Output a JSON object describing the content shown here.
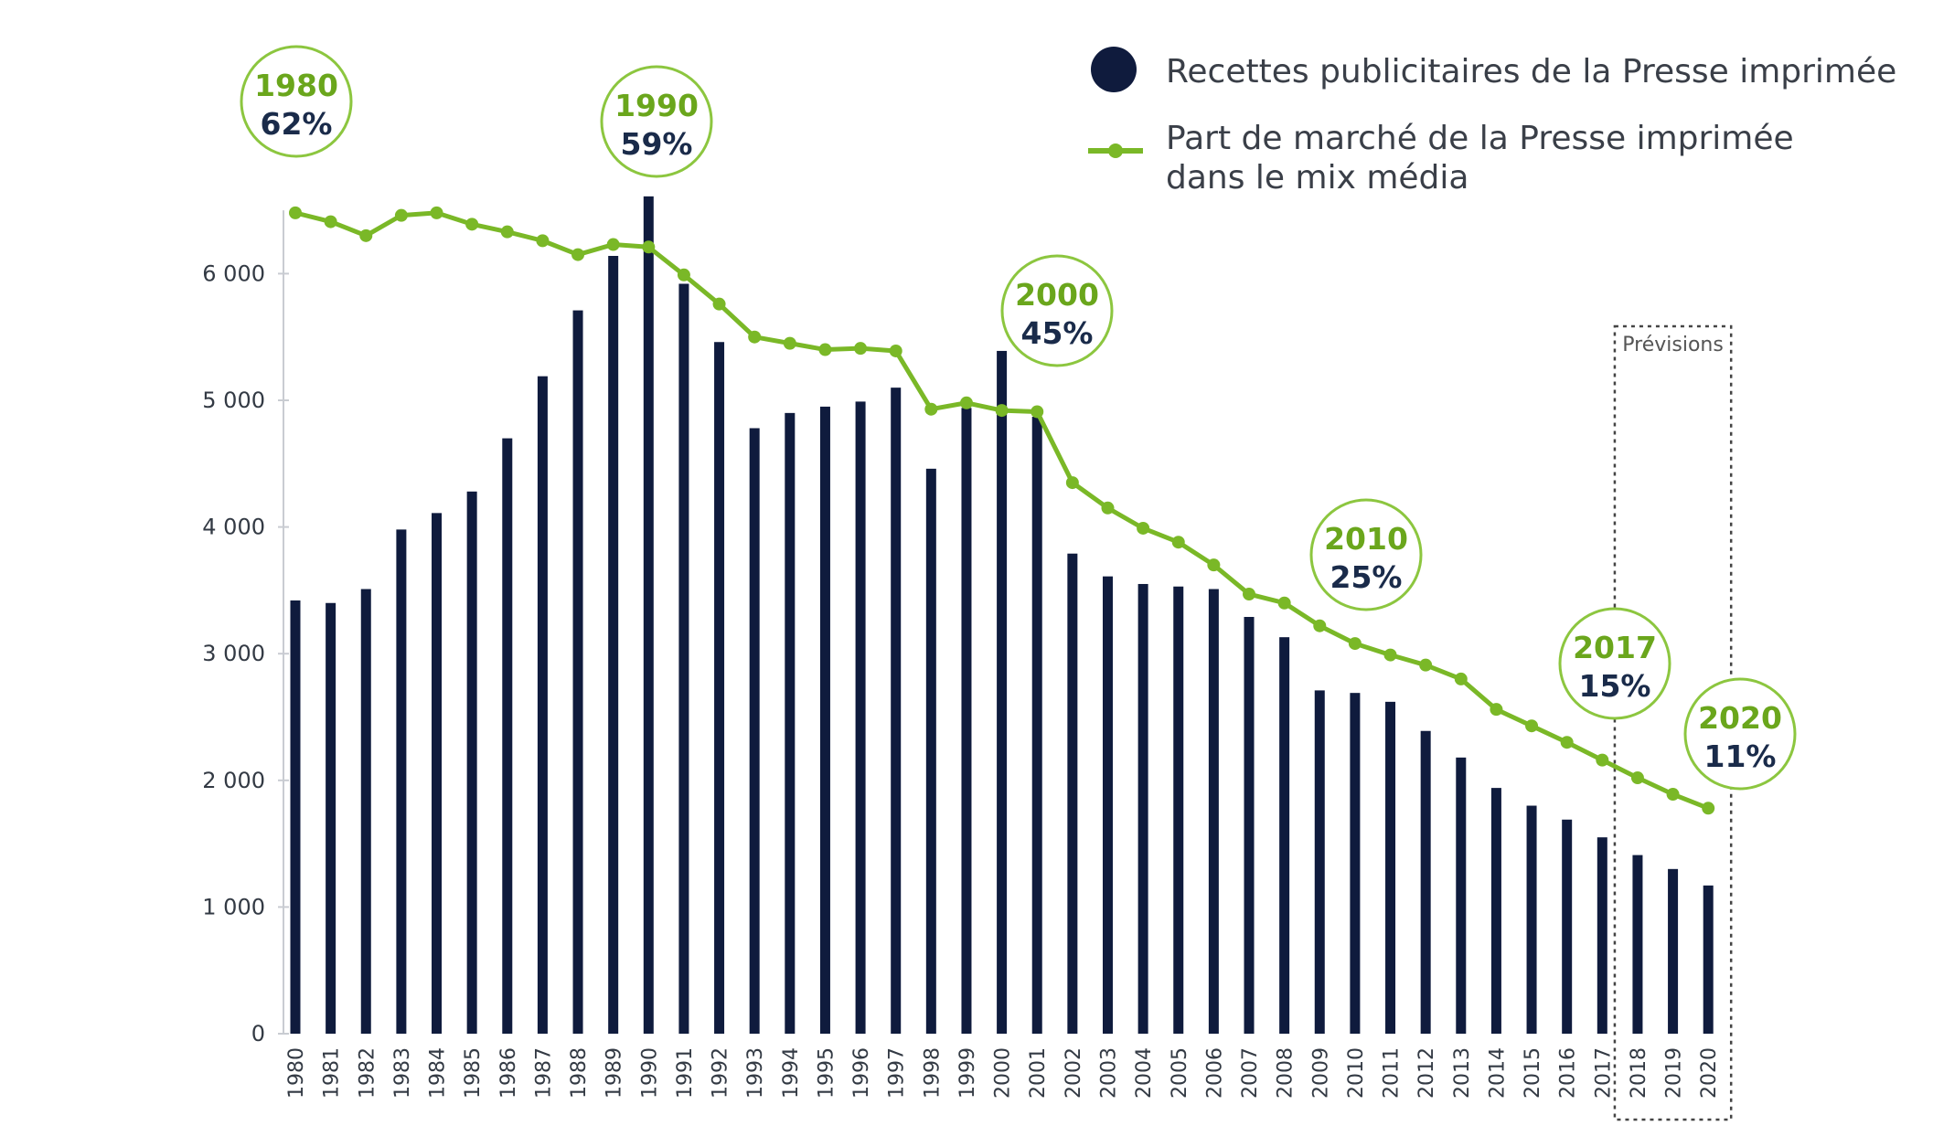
{
  "chart_data": {
    "type": "bar",
    "categories": [
      "1980",
      "1981",
      "1982",
      "1983",
      "1984",
      "1985",
      "1986",
      "1987",
      "1988",
      "1989",
      "1990",
      "1991",
      "1992",
      "1993",
      "1994",
      "1995",
      "1996",
      "1997",
      "1998",
      "1999",
      "2000",
      "2001",
      "2002",
      "2003",
      "2004",
      "2005",
      "2006",
      "2007",
      "2008",
      "2009",
      "2010",
      "2011",
      "2012",
      "2013",
      "2014",
      "2015",
      "2016",
      "2017",
      "2018",
      "2019",
      "2020"
    ],
    "series": [
      {
        "name": "Recettes publicitaires de la Presse imprimée",
        "type": "bar",
        "color": "#0f1b3d",
        "values": [
          3420,
          3400,
          3510,
          3980,
          4110,
          4280,
          4700,
          5190,
          5710,
          6140,
          6610,
          5920,
          5460,
          4780,
          4900,
          4950,
          4990,
          5100,
          4460,
          4940,
          5390,
          4870,
          3790,
          3610,
          3550,
          3530,
          3510,
          3290,
          3130,
          2710,
          2690,
          2620,
          2390,
          2180,
          1940,
          1800,
          1690,
          1550,
          1410,
          1300,
          1170
        ]
      },
      {
        "name": "Part de marché de la Presse imprimée dans le mix média",
        "line1": "Part de marché de la Presse imprimée",
        "line2": "dans le mix média",
        "type": "line",
        "color": "#7ab827",
        "values": [
          6480,
          6410,
          6300,
          6460,
          6480,
          6390,
          6330,
          6260,
          6150,
          6230,
          6210,
          5990,
          5760,
          5500,
          5450,
          5400,
          5410,
          5390,
          4930,
          4980,
          4920,
          4910,
          4350,
          4150,
          3990,
          3880,
          3700,
          3470,
          3400,
          3220,
          3080,
          2990,
          2910,
          2800,
          2560,
          2430,
          2300,
          2160,
          2020,
          1890,
          1780
        ]
      }
    ],
    "xlabel": "",
    "ylabel": "",
    "ylim": [
      0,
      6600
    ],
    "yticks": [
      0,
      1000,
      2000,
      3000,
      4000,
      5000,
      6000
    ],
    "ytick_labels": [
      "0",
      "1 000",
      "2 000",
      "3 000",
      "4 000",
      "5 000",
      "6 000"
    ],
    "grid": false,
    "legend_position": "top-right",
    "annotations": [
      {
        "year": "1980",
        "pct": "62%",
        "circle_color": "#8cc63f",
        "bg": "#ffffff"
      },
      {
        "year": "1990",
        "pct": "59%",
        "circle_color": "#8cc63f",
        "bg": "#ffffff"
      },
      {
        "year": "2000",
        "pct": "45%",
        "circle_color": "#8cc63f",
        "bg": "#ffffff"
      },
      {
        "year": "2010",
        "pct": "25%",
        "circle_color": "#8cc63f",
        "bg": "#ffffff"
      },
      {
        "year": "2017",
        "pct": "15%",
        "circle_color": "#8cc63f",
        "bg": "#ffffff"
      },
      {
        "year": "2020",
        "pct": "11%",
        "circle_color": "#8cc63f",
        "bg": "#ffffff"
      }
    ],
    "forecast": {
      "label": "Prévisions",
      "from": "2018",
      "to": "2020"
    }
  }
}
